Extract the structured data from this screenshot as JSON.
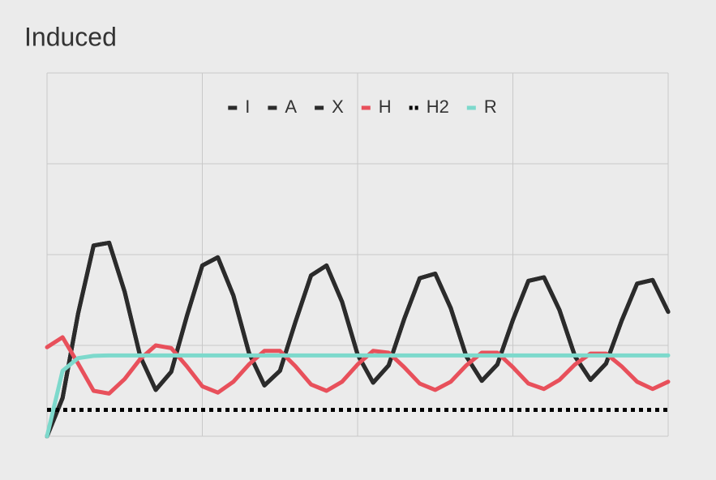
{
  "chart_data": {
    "type": "line",
    "title": "Induced",
    "x": [
      0,
      0.1,
      0.2,
      0.3,
      0.4,
      0.5,
      0.6,
      0.7,
      0.8,
      0.9,
      1,
      1.1,
      1.2,
      1.3,
      1.4,
      1.5,
      1.6,
      1.7,
      1.8,
      1.9,
      2,
      2.1,
      2.2,
      2.3,
      2.4,
      2.5,
      2.6,
      2.7,
      2.8,
      2.9,
      3,
      3.1,
      3.2,
      3.3,
      3.4,
      3.5,
      3.6,
      3.7,
      3.8,
      3.9,
      4
    ],
    "series": [
      {
        "name": "I",
        "color": "#2b2b2b",
        "values": [
          0,
          0.42,
          1.35,
          2.1,
          2.13,
          1.59,
          0.88,
          0.51,
          0.71,
          1.32,
          1.88,
          1.97,
          1.55,
          0.92,
          0.56,
          0.72,
          1.26,
          1.77,
          1.88,
          1.48,
          0.9,
          0.59,
          0.78,
          1.29,
          1.74,
          1.79,
          1.41,
          0.88,
          0.61,
          0.79,
          1.28,
          1.71,
          1.75,
          1.39,
          0.88,
          0.62,
          0.8,
          1.27,
          1.68,
          1.72,
          1.37
        ]
      },
      {
        "name": "A",
        "color": "#2b2b2b",
        "values": [
          0,
          0.42,
          1.35,
          2.1,
          2.13,
          1.59,
          0.88,
          0.51,
          0.71,
          1.32,
          1.88,
          1.97,
          1.55,
          0.92,
          0.56,
          0.72,
          1.26,
          1.77,
          1.88,
          1.48,
          0.9,
          0.59,
          0.78,
          1.29,
          1.74,
          1.79,
          1.41,
          0.88,
          0.61,
          0.79,
          1.28,
          1.71,
          1.75,
          1.39,
          0.88,
          0.62,
          0.8,
          1.27,
          1.68,
          1.72,
          1.37
        ]
      },
      {
        "name": "X",
        "color": "#2b2b2b",
        "values": [
          0,
          0.42,
          1.35,
          2.1,
          2.13,
          1.59,
          0.88,
          0.51,
          0.71,
          1.32,
          1.88,
          1.97,
          1.55,
          0.92,
          0.56,
          0.72,
          1.26,
          1.77,
          1.88,
          1.48,
          0.9,
          0.59,
          0.78,
          1.29,
          1.74,
          1.79,
          1.41,
          0.88,
          0.61,
          0.79,
          1.28,
          1.71,
          1.75,
          1.39,
          0.88,
          0.62,
          0.8,
          1.27,
          1.68,
          1.72,
          1.37
        ]
      },
      {
        "name": "H",
        "color": "#e8505b",
        "values": [
          0.98,
          1.09,
          0.8,
          0.5,
          0.47,
          0.63,
          0.85,
          1.0,
          0.97,
          0.77,
          0.55,
          0.48,
          0.6,
          0.79,
          0.94,
          0.94,
          0.77,
          0.57,
          0.5,
          0.6,
          0.79,
          0.94,
          0.92,
          0.76,
          0.58,
          0.51,
          0.6,
          0.78,
          0.92,
          0.92,
          0.76,
          0.58,
          0.52,
          0.62,
          0.79,
          0.91,
          0.91,
          0.77,
          0.6,
          0.52,
          0.6
        ]
      },
      {
        "name": "H2",
        "color": "#000000",
        "dash": "dotted",
        "values": [
          0.29,
          0.29,
          0.29,
          0.29,
          0.29,
          0.29,
          0.29,
          0.29,
          0.29,
          0.29,
          0.29,
          0.29,
          0.29,
          0.29,
          0.29,
          0.29,
          0.29,
          0.29,
          0.29,
          0.29,
          0.29,
          0.29,
          0.29,
          0.29,
          0.29,
          0.29,
          0.29,
          0.29,
          0.29,
          0.29,
          0.29,
          0.29,
          0.29,
          0.29,
          0.29,
          0.29,
          0.29,
          0.29,
          0.29,
          0.29,
          0.29
        ]
      },
      {
        "name": "R",
        "color": "#7dd9cc",
        "values": [
          0,
          0.72,
          0.86,
          0.885,
          0.89,
          0.89,
          0.89,
          0.89,
          0.89,
          0.89,
          0.89,
          0.89,
          0.89,
          0.89,
          0.89,
          0.89,
          0.89,
          0.89,
          0.89,
          0.89,
          0.89,
          0.89,
          0.89,
          0.89,
          0.89,
          0.89,
          0.89,
          0.89,
          0.89,
          0.89,
          0.89,
          0.89,
          0.89,
          0.89,
          0.89,
          0.89,
          0.89,
          0.89,
          0.89,
          0.89,
          0.89
        ]
      }
    ],
    "xlim": [
      0,
      4
    ],
    "xticks": [
      0,
      1,
      2,
      3,
      4
    ],
    "ylim": [
      0,
      4
    ],
    "yticks": [
      0,
      1,
      2,
      3,
      4
    ],
    "grid": true,
    "legend": "top"
  }
}
